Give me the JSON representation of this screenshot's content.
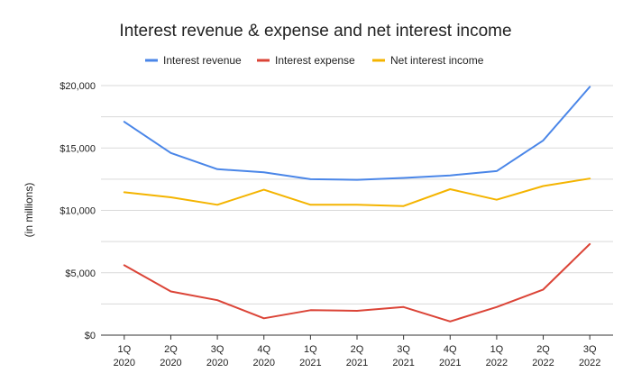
{
  "chart_data": {
    "type": "line",
    "title": "Interest revenue & expense and net interest income",
    "ylabel": "(in millions)",
    "xlabel": "",
    "legend_position": "top",
    "grid": true,
    "ylim": [
      0,
      20000
    ],
    "yticks": [
      0,
      5000,
      10000,
      15000,
      20000
    ],
    "ytick_labels": [
      "$0",
      "$5,000",
      "$10,000",
      "$15,000",
      "$20,000"
    ],
    "categories": [
      [
        "1Q",
        "2020"
      ],
      [
        "2Q",
        "2020"
      ],
      [
        "3Q",
        "2020"
      ],
      [
        "4Q",
        "2020"
      ],
      [
        "1Q",
        "2021"
      ],
      [
        "2Q",
        "2021"
      ],
      [
        "3Q",
        "2021"
      ],
      [
        "4Q",
        "2021"
      ],
      [
        "1Q",
        "2022"
      ],
      [
        "2Q",
        "2022"
      ],
      [
        "3Q",
        "2022"
      ]
    ],
    "series": [
      {
        "name": "Interest revenue",
        "color": "#4a86e8",
        "values": [
          17100,
          14600,
          13300,
          13050,
          12500,
          12450,
          12600,
          12800,
          13150,
          15600,
          19900
        ]
      },
      {
        "name": "Interest expense",
        "color": "#db4437",
        "values": [
          5600,
          3500,
          2800,
          1350,
          2000,
          1950,
          2250,
          1100,
          2250,
          3650,
          7300
        ]
      },
      {
        "name": "Net interest income",
        "color": "#f4b400",
        "values": [
          11450,
          11050,
          10450,
          11650,
          10450,
          10450,
          10350,
          11700,
          10850,
          11950,
          12550
        ]
      }
    ]
  }
}
